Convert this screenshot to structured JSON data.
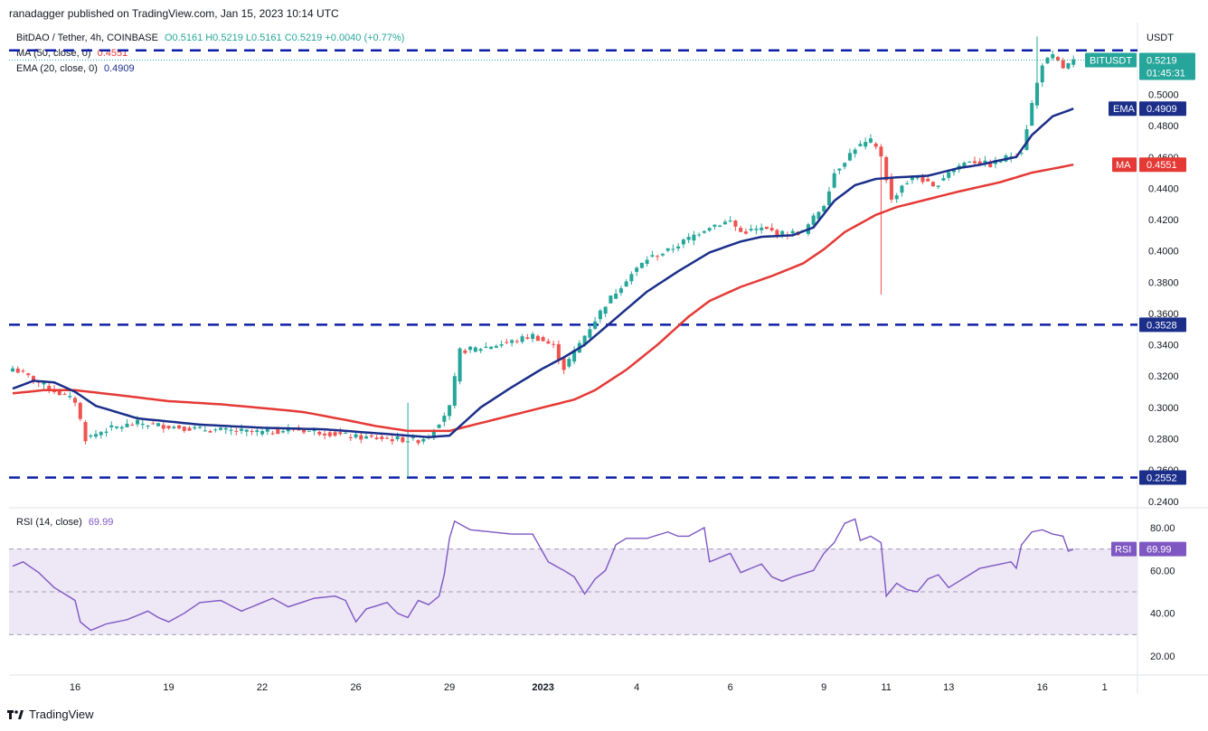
{
  "header": {
    "published": "ranadagger published on TradingView.com, Jan 15, 2023 10:14 UTC"
  },
  "legend": {
    "symbol": "BitDAO / Tether, 4h, COINBASE",
    "ohlc": "O0.5161 H0.5219 L0.5161 C0.5219 +0.0040 (+0.77%)",
    "ma_label": "MA (50, close, 0)",
    "ma_value": "0.4551",
    "ema_label": "EMA (20, close, 0)",
    "ema_value": "0.4909",
    "rsi_label": "RSI (14, close)",
    "rsi_value": "69.99"
  },
  "footer": {
    "brand": "TradingView"
  },
  "colors": {
    "up": "#26a69a",
    "down": "#ef5350",
    "ema": "#1b2f8a",
    "ma": "#e53935",
    "rsi": "#7e57c2",
    "rsi_band": "#ede7f6",
    "level_line": "#0d1ea8",
    "tag_dark": "#1b2f8a"
  },
  "chart_data": {
    "type": "candlestick",
    "price_axis": {
      "unit": "USDT",
      "ticks": [
        "0.5000",
        "0.4800",
        "0.4600",
        "0.4400",
        "0.4200",
        "0.4000",
        "0.3800",
        "0.3600",
        "0.3400",
        "0.3200",
        "0.3000",
        "0.2800",
        "0.2600",
        "0.2400"
      ],
      "ylim": [
        0.237,
        0.543
      ]
    },
    "x_ticks": [
      {
        "label": "16",
        "i": 12
      },
      {
        "label": "19",
        "i": 30
      },
      {
        "label": "22",
        "i": 48
      },
      {
        "label": "26",
        "i": 66
      },
      {
        "label": "29",
        "i": 84
      },
      {
        "label": "2023",
        "i": 102
      },
      {
        "label": "4",
        "i": 120
      },
      {
        "label": "6",
        "i": 138
      },
      {
        "label": "9",
        "i": 156
      },
      {
        "label": "11",
        "i": 168
      },
      {
        "label": "13",
        "i": 180
      },
      {
        "label": "16",
        "i": 198
      },
      {
        "label": "1",
        "i": 210
      }
    ],
    "horizontal_levels": [
      {
        "label": "0.5281",
        "value": 0.5281,
        "tagged": false
      },
      {
        "label": "0.3528",
        "value": 0.3528,
        "tagged": true
      },
      {
        "label": "0.2552",
        "value": 0.2552,
        "tagged": true
      }
    ],
    "tags": {
      "last": {
        "name": "BITUSDT",
        "price": "0.5219",
        "time": "01:45:31",
        "value": 0.5219
      },
      "ema": {
        "name": "EMA",
        "price": "0.4909",
        "value": 0.4909
      },
      "ma": {
        "name": "MA",
        "price": "0.4551",
        "value": 0.4551
      },
      "level1": "0.3528",
      "level2": "0.2552"
    },
    "anchors": {
      "close": [
        [
          0,
          0.325
        ],
        [
          6,
          0.314
        ],
        [
          12,
          0.304
        ],
        [
          14,
          0.28
        ],
        [
          18,
          0.286
        ],
        [
          24,
          0.29
        ],
        [
          30,
          0.288
        ],
        [
          36,
          0.286
        ],
        [
          42,
          0.285
        ],
        [
          48,
          0.284
        ],
        [
          54,
          0.286
        ],
        [
          60,
          0.284
        ],
        [
          66,
          0.281
        ],
        [
          72,
          0.28
        ],
        [
          78,
          0.279
        ],
        [
          80,
          0.282
        ],
        [
          84,
          0.3
        ],
        [
          86,
          0.336
        ],
        [
          90,
          0.338
        ],
        [
          96,
          0.342
        ],
        [
          100,
          0.346
        ],
        [
          104,
          0.339
        ],
        [
          106,
          0.325
        ],
        [
          110,
          0.346
        ],
        [
          114,
          0.366
        ],
        [
          118,
          0.382
        ],
        [
          122,
          0.395
        ],
        [
          126,
          0.4
        ],
        [
          130,
          0.408
        ],
        [
          134,
          0.416
        ],
        [
          138,
          0.419
        ],
        [
          140,
          0.412
        ],
        [
          144,
          0.414
        ],
        [
          148,
          0.411
        ],
        [
          152,
          0.412
        ],
        [
          156,
          0.43
        ],
        [
          158,
          0.45
        ],
        [
          162,
          0.466
        ],
        [
          165,
          0.47
        ],
        [
          167,
          0.461
        ],
        [
          169,
          0.432
        ],
        [
          171,
          0.442
        ],
        [
          174,
          0.448
        ],
        [
          177,
          0.44
        ],
        [
          180,
          0.451
        ],
        [
          184,
          0.458
        ],
        [
          188,
          0.455
        ],
        [
          192,
          0.461
        ],
        [
          194,
          0.464
        ],
        [
          196,
          0.494
        ],
        [
          198,
          0.52
        ],
        [
          200,
          0.524
        ],
        [
          202,
          0.517
        ],
        [
          204,
          0.521
        ]
      ],
      "ema": [
        [
          0,
          0.312
        ],
        [
          4,
          0.317
        ],
        [
          8,
          0.316
        ],
        [
          12,
          0.31
        ],
        [
          16,
          0.301
        ],
        [
          24,
          0.293
        ],
        [
          36,
          0.289
        ],
        [
          48,
          0.287
        ],
        [
          60,
          0.286
        ],
        [
          72,
          0.283
        ],
        [
          80,
          0.281
        ],
        [
          84,
          0.282
        ],
        [
          90,
          0.3
        ],
        [
          96,
          0.313
        ],
        [
          102,
          0.325
        ],
        [
          106,
          0.332
        ],
        [
          110,
          0.34
        ],
        [
          116,
          0.357
        ],
        [
          122,
          0.374
        ],
        [
          128,
          0.387
        ],
        [
          134,
          0.399
        ],
        [
          140,
          0.406
        ],
        [
          144,
          0.409
        ],
        [
          150,
          0.41
        ],
        [
          154,
          0.415
        ],
        [
          158,
          0.432
        ],
        [
          162,
          0.442
        ],
        [
          166,
          0.446
        ],
        [
          170,
          0.447
        ],
        [
          176,
          0.448
        ],
        [
          182,
          0.453
        ],
        [
          186,
          0.455
        ],
        [
          190,
          0.458
        ],
        [
          193,
          0.46
        ],
        [
          196,
          0.474
        ],
        [
          200,
          0.486
        ],
        [
          204,
          0.4909
        ]
      ],
      "ma": [
        [
          0,
          0.309
        ],
        [
          6,
          0.311
        ],
        [
          12,
          0.311
        ],
        [
          20,
          0.308
        ],
        [
          30,
          0.304
        ],
        [
          40,
          0.302
        ],
        [
          50,
          0.299
        ],
        [
          56,
          0.297
        ],
        [
          64,
          0.292
        ],
        [
          70,
          0.288
        ],
        [
          76,
          0.285
        ],
        [
          84,
          0.285
        ],
        [
          90,
          0.29
        ],
        [
          96,
          0.295
        ],
        [
          102,
          0.3
        ],
        [
          108,
          0.305
        ],
        [
          112,
          0.311
        ],
        [
          118,
          0.324
        ],
        [
          124,
          0.34
        ],
        [
          130,
          0.358
        ],
        [
          134,
          0.368
        ],
        [
          140,
          0.377
        ],
        [
          146,
          0.384
        ],
        [
          152,
          0.392
        ],
        [
          156,
          0.401
        ],
        [
          160,
          0.412
        ],
        [
          166,
          0.423
        ],
        [
          170,
          0.428
        ],
        [
          176,
          0.433
        ],
        [
          182,
          0.438
        ],
        [
          190,
          0.444
        ],
        [
          196,
          0.45
        ],
        [
          204,
          0.4551
        ]
      ],
      "rsi": [
        [
          0,
          62
        ],
        [
          2,
          64
        ],
        [
          5,
          59
        ],
        [
          8,
          52
        ],
        [
          12,
          46
        ],
        [
          13,
          36
        ],
        [
          15,
          32
        ],
        [
          18,
          35
        ],
        [
          22,
          37
        ],
        [
          26,
          41
        ],
        [
          28,
          38
        ],
        [
          30,
          36
        ],
        [
          33,
          40
        ],
        [
          36,
          45
        ],
        [
          40,
          46
        ],
        [
          44,
          41
        ],
        [
          46,
          43
        ],
        [
          50,
          47
        ],
        [
          53,
          43
        ],
        [
          58,
          47
        ],
        [
          62,
          48
        ],
        [
          64,
          46
        ],
        [
          66,
          36
        ],
        [
          68,
          42
        ],
        [
          72,
          45
        ],
        [
          74,
          40
        ],
        [
          76,
          38
        ],
        [
          78,
          46
        ],
        [
          80,
          44
        ],
        [
          82,
          48
        ],
        [
          83,
          58
        ],
        [
          84,
          75
        ],
        [
          85,
          83
        ],
        [
          88,
          79
        ],
        [
          92,
          78
        ],
        [
          96,
          77
        ],
        [
          100,
          77
        ],
        [
          103,
          64
        ],
        [
          106,
          60
        ],
        [
          108,
          57
        ],
        [
          110,
          49
        ],
        [
          112,
          56
        ],
        [
          114,
          60
        ],
        [
          116,
          72
        ],
        [
          118,
          75
        ],
        [
          122,
          75
        ],
        [
          126,
          78
        ],
        [
          128,
          76
        ],
        [
          130,
          76
        ],
        [
          133,
          80
        ],
        [
          134,
          64
        ],
        [
          138,
          68
        ],
        [
          140,
          59
        ],
        [
          144,
          63
        ],
        [
          146,
          57
        ],
        [
          148,
          55
        ],
        [
          150,
          57
        ],
        [
          154,
          60
        ],
        [
          156,
          68
        ],
        [
          158,
          73
        ],
        [
          160,
          82
        ],
        [
          162,
          84
        ],
        [
          163,
          74
        ],
        [
          165,
          76
        ],
        [
          167,
          73
        ],
        [
          168,
          48
        ],
        [
          170,
          54
        ],
        [
          172,
          51
        ],
        [
          174,
          50
        ],
        [
          176,
          56
        ],
        [
          178,
          58
        ],
        [
          180,
          52
        ],
        [
          182,
          55
        ],
        [
          184,
          58
        ],
        [
          186,
          61
        ],
        [
          188,
          62
        ],
        [
          190,
          63
        ],
        [
          192,
          64
        ],
        [
          193,
          61
        ],
        [
          194,
          72
        ],
        [
          196,
          78
        ],
        [
          198,
          79
        ],
        [
          200,
          77
        ],
        [
          202,
          76
        ],
        [
          203,
          69
        ],
        [
          204,
          69.99
        ]
      ]
    },
    "rsi_axis": {
      "ticks": [
        "80.00",
        "60.00",
        "40.00",
        "20.00"
      ],
      "ylim": [
        12,
        88
      ],
      "band": [
        30,
        70
      ],
      "mid": 50
    },
    "bars": 205
  }
}
